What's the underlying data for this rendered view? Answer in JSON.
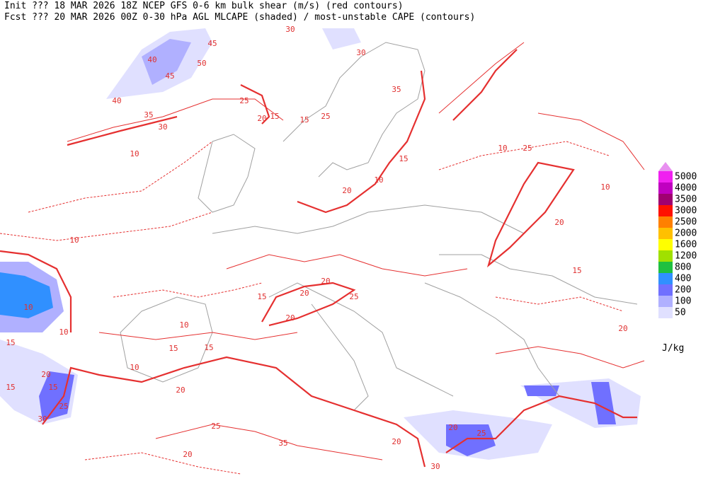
{
  "header": {
    "line1": "Init  ??? 18 MAR 2026 18Z  NCEP GFS 0-6 km bulk shear (m/s) (red contours)",
    "line2": "Fcst ??? 20 MAR 2026 00Z  0-30 hPa AGL MLCAPE (shaded) / most-unstable CAPE (contours)"
  },
  "colorbar": {
    "unit": "J/kg",
    "top_color": "#e890f0",
    "levels": [
      {
        "value": 5000,
        "color": "#f020f0"
      },
      {
        "value": 4000,
        "color": "#c000c0"
      },
      {
        "value": 3500,
        "color": "#a00070"
      },
      {
        "value": 3000,
        "color": "#ff1000"
      },
      {
        "value": 2500,
        "color": "#ff8000"
      },
      {
        "value": 2000,
        "color": "#ffc000"
      },
      {
        "value": 1600,
        "color": "#ffff00"
      },
      {
        "value": 1200,
        "color": "#a0e000"
      },
      {
        "value": 800,
        "color": "#20c040"
      },
      {
        "value": 400,
        "color": "#3090ff"
      },
      {
        "value": 200,
        "color": "#7070ff"
      },
      {
        "value": 100,
        "color": "#b0b0ff"
      },
      {
        "value": 50,
        "color": "#e0e0ff"
      }
    ]
  },
  "contour_labels": [
    30,
    40,
    45,
    50,
    45,
    40,
    35,
    30,
    25,
    20,
    15,
    35,
    30,
    25,
    15,
    10,
    10,
    20,
    15,
    10,
    20,
    25,
    20,
    15,
    10,
    10,
    15,
    20,
    15,
    10,
    15,
    20,
    25,
    20,
    30,
    20,
    25,
    35,
    25,
    20,
    30,
    20,
    15,
    10,
    10,
    15,
    20,
    15,
    25,
    10,
    20
  ]
}
